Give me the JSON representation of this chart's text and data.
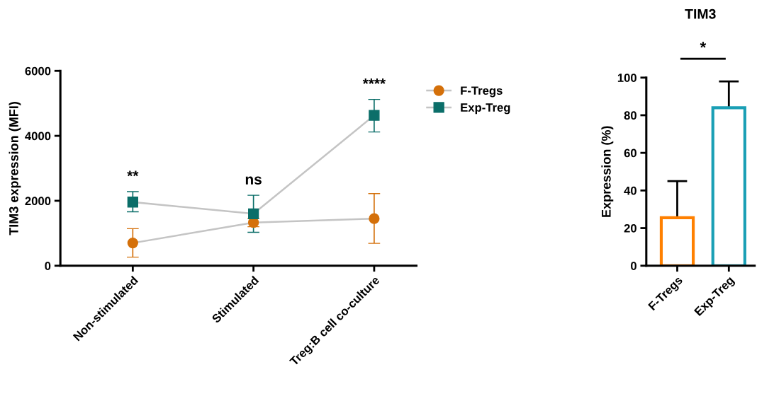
{
  "chart_data": [
    {
      "type": "line",
      "ylabel": "TIM3 expression (MFI)",
      "categories": [
        "Non-stimulated",
        "Stimulated",
        "Treg:B cell co-culture"
      ],
      "series": [
        {
          "name": "F-Tregs",
          "color": "#d4700a",
          "marker": "circle",
          "values": [
            700,
            1330,
            1450
          ],
          "errors": [
            [
              265,
              1140
            ],
            [
              1200,
              1460
            ],
            [
              690,
              2220
            ]
          ]
        },
        {
          "name": "Exp-Treg",
          "color": "#0b6e69",
          "marker": "square",
          "values": [
            1960,
            1600,
            4630
          ],
          "errors": [
            [
              1660,
              2280
            ],
            [
              1030,
              2170
            ],
            [
              4120,
              5120
            ]
          ]
        }
      ],
      "ylim": [
        0,
        6000
      ],
      "yticks": [
        0,
        2000,
        4000,
        6000
      ],
      "grid": false,
      "legend": "right",
      "annotations": [
        "**",
        "ns",
        "****"
      ]
    },
    {
      "type": "bar",
      "title": "TIM3",
      "ylabel": "Expression (%)",
      "categories": [
        "F-Tregs",
        "Exp-Treg"
      ],
      "values": [
        25.5,
        84
      ],
      "colors": [
        "#ff8000",
        "#1a9fb5"
      ],
      "errors": [
        19.5,
        14
      ],
      "ylim": [
        0,
        100
      ],
      "yticks": [
        0,
        20,
        40,
        60,
        80,
        100
      ],
      "grid": false,
      "legend": false,
      "annotations": [
        "*"
      ]
    }
  ]
}
